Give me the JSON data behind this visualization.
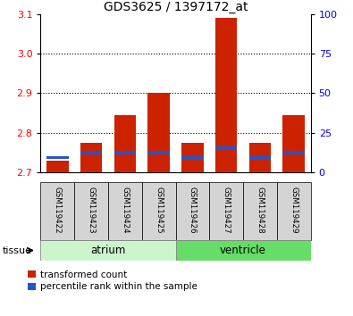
{
  "title": "GDS3625 / 1397172_at",
  "samples": [
    "GSM119422",
    "GSM119423",
    "GSM119424",
    "GSM119425",
    "GSM119426",
    "GSM119427",
    "GSM119428",
    "GSM119429"
  ],
  "red_bar_tops": [
    2.73,
    2.775,
    2.845,
    2.9,
    2.775,
    3.09,
    2.775,
    2.845
  ],
  "blue_bar_positions": [
    2.733,
    2.745,
    2.745,
    2.745,
    2.733,
    2.758,
    2.733,
    2.745
  ],
  "blue_bar_height": 0.008,
  "bar_bottom": 2.7,
  "ylim_left": [
    2.7,
    3.1
  ],
  "ylim_right": [
    0,
    100
  ],
  "yticks_left": [
    2.7,
    2.8,
    2.9,
    3.0,
    3.1
  ],
  "yticks_right": [
    0,
    25,
    50,
    75,
    100
  ],
  "bar_color_red": "#cc2200",
  "bar_color_blue": "#2255cc",
  "bar_width": 0.65,
  "legend_red": "transformed count",
  "legend_blue": "percentile rank within the sample",
  "title_fontsize": 10,
  "tick_fontsize": 8,
  "atrium_color": "#ccf5cc",
  "ventricle_color": "#66dd66",
  "sample_box_color": "#d4d4d4"
}
